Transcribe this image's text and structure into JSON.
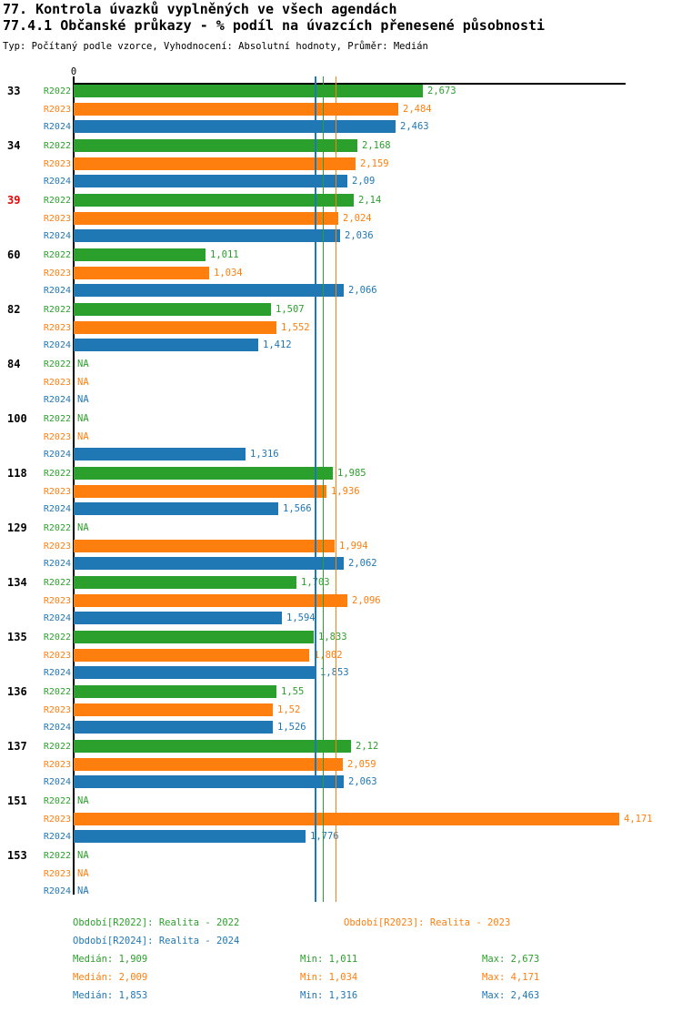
{
  "header": {
    "title": "77. Kontrola úvazků vyplněných ve všech agendách",
    "subtitle": "77.4.1 Občanské průkazy - % podíl na úvazcích přenesené působnosti",
    "meta": "Typ: Počítaný podle vzorce, Vyhodnocení: Absolutní hodnoty, Průměr: Medián"
  },
  "colors": {
    "r2022_green": "#2ca02c",
    "r2023_orange": "#ff7f0e",
    "r2024_blue": "#1f77b4",
    "highlighted_group_label_red": "#ee0000",
    "axis_black": "#000000"
  },
  "chart_data": {
    "type": "bar",
    "orientation": "horizontal",
    "x_origin_label": "0",
    "xlim": [
      0,
      4.23
    ],
    "grid": false,
    "series": [
      "R2022",
      "R2023",
      "R2024"
    ],
    "series_colors": [
      "#2ca02c",
      "#ff7f0e",
      "#1f77b4"
    ],
    "median_lines": [
      {
        "series": "R2024",
        "value": 1.853
      },
      {
        "series": "R2022",
        "value": 1.909
      },
      {
        "series": "R2023",
        "value": 2.009
      }
    ],
    "groups": [
      {
        "label": "33",
        "highlighted": false,
        "values": [
          2.673,
          2.484,
          2.463
        ],
        "value_labels": [
          "2,673",
          "2,484",
          "2,463"
        ]
      },
      {
        "label": "34",
        "highlighted": false,
        "values": [
          2.168,
          2.159,
          2.09
        ],
        "value_labels": [
          "2,168",
          "2,159",
          "2,09"
        ]
      },
      {
        "label": "39",
        "highlighted": true,
        "values": [
          2.14,
          2.024,
          2.036
        ],
        "value_labels": [
          "2,14",
          "2,024",
          "2,036"
        ]
      },
      {
        "label": "60",
        "highlighted": false,
        "values": [
          1.011,
          1.034,
          2.066
        ],
        "value_labels": [
          "1,011",
          "1,034",
          "2,066"
        ]
      },
      {
        "label": "82",
        "highlighted": false,
        "values": [
          1.507,
          1.552,
          1.412
        ],
        "value_labels": [
          "1,507",
          "1,552",
          "1,412"
        ]
      },
      {
        "label": "84",
        "highlighted": false,
        "values": [
          null,
          null,
          null
        ],
        "value_labels": [
          "NA",
          "NA",
          "NA"
        ]
      },
      {
        "label": "100",
        "highlighted": false,
        "values": [
          null,
          null,
          1.316
        ],
        "value_labels": [
          "NA",
          "NA",
          "1,316"
        ]
      },
      {
        "label": "118",
        "highlighted": false,
        "values": [
          1.985,
          1.936,
          1.566
        ],
        "value_labels": [
          "1,985",
          "1,936",
          "1,566"
        ]
      },
      {
        "label": "129",
        "highlighted": false,
        "values": [
          null,
          1.994,
          2.062
        ],
        "value_labels": [
          "NA",
          "1,994",
          "2,062"
        ]
      },
      {
        "label": "134",
        "highlighted": false,
        "values": [
          1.703,
          2.096,
          1.594
        ],
        "value_labels": [
          "1,703",
          "2,096",
          "1,594"
        ]
      },
      {
        "label": "135",
        "highlighted": false,
        "values": [
          1.833,
          1.802,
          1.853
        ],
        "value_labels": [
          "1,833",
          "1,802",
          "1,853"
        ]
      },
      {
        "label": "136",
        "highlighted": false,
        "values": [
          1.55,
          1.52,
          1.526
        ],
        "value_labels": [
          "1,55",
          "1,52",
          "1,526"
        ]
      },
      {
        "label": "137",
        "highlighted": false,
        "values": [
          2.12,
          2.059,
          2.063
        ],
        "value_labels": [
          "2,12",
          "2,059",
          "2,063"
        ]
      },
      {
        "label": "151",
        "highlighted": false,
        "values": [
          null,
          4.171,
          1.776
        ],
        "value_labels": [
          "NA",
          "4,171",
          "1,776"
        ]
      },
      {
        "label": "153",
        "highlighted": false,
        "values": [
          null,
          null,
          null
        ],
        "value_labels": [
          "NA",
          "NA",
          "NA"
        ]
      }
    ]
  },
  "legend": {
    "periods": [
      {
        "text": "Období[R2022]: Realita - 2022",
        "series": "R2022"
      },
      {
        "text": "Období[R2023]: Realita - 2023",
        "series": "R2023"
      },
      {
        "text": "Období[R2024]: Realita - 2024",
        "series": "R2024"
      }
    ],
    "stats": [
      {
        "series": "R2022",
        "median": "Medián: 1,909",
        "min": "Min: 1,011",
        "max": "Max: 2,673"
      },
      {
        "series": "R2023",
        "median": "Medián: 2,009",
        "min": "Min: 1,034",
        "max": "Max: 4,171"
      },
      {
        "series": "R2024",
        "median": "Medián: 1,853",
        "min": "Min: 1,316",
        "max": "Max: 2,463"
      }
    ]
  }
}
